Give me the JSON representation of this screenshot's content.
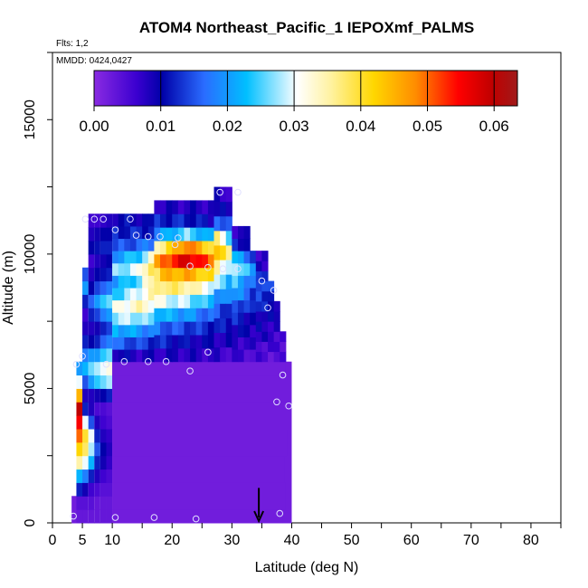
{
  "chart_data": {
    "type": "heatmap",
    "title": "ATOM4 Northeast_Pacific_1 IEPOXmf_PALMS",
    "annotations": {
      "flights": "Flts: 1,2",
      "dates": "MMDD: 0424,0427"
    },
    "xlabel": "Latitude (deg N)",
    "ylabel": "Altitude (m)",
    "xlim": [
      0,
      85
    ],
    "ylim": [
      0,
      17500
    ],
    "x_ticks": [
      0,
      5,
      10,
      20,
      30,
      40,
      50,
      60,
      70,
      80
    ],
    "y_ticks": [
      0,
      5000,
      10000,
      15000
    ],
    "grid": false,
    "colorbar": {
      "placement": "top-inside",
      "min": 0,
      "max": 0.0635,
      "ticks": [
        "0.00",
        "0.01",
        "0.02",
        "0.03",
        "0.04",
        "0.05",
        "0.06"
      ],
      "tick_values": [
        0,
        0.01,
        0.02,
        0.03,
        0.04,
        0.05,
        0.06
      ],
      "colors": [
        "#8a2be2",
        "#0000a8",
        "#2a6cff",
        "#00bfff",
        "#ffffff",
        "#ffd700",
        "#ff8c00",
        "#ff0000",
        "#a01010"
      ]
    },
    "marker": {
      "type": "arrow-down",
      "x": 34.5
    },
    "columns": [
      {
        "x0": 3.2,
        "x1": 4.5,
        "ytop": 1000,
        "v": [
          0.002
        ]
      },
      {
        "x0": 4.0,
        "x1": 5.2,
        "ytop": 6000,
        "v": [
          0.003,
          0.004,
          0.012,
          0.022,
          0.035,
          0.042,
          0.05,
          0.055,
          0.06,
          0.045,
          0.03,
          0.02
        ]
      },
      {
        "x0": 5.0,
        "x1": 6.0,
        "ytop": 9500,
        "v": [
          0.003,
          0.004,
          0.009,
          0.018,
          0.03,
          0.038,
          0.04,
          0.03,
          0.012,
          0.008,
          0.015,
          0.022,
          0.018,
          0.012,
          0.008,
          0.006,
          0.012,
          0.02,
          0.015
        ]
      },
      {
        "x0": 6.0,
        "x1": 7.0,
        "ytop": 11500,
        "v": [
          0.003,
          0.004,
          0.006,
          0.012,
          0.022,
          0.028,
          0.03,
          0.015,
          0.008,
          0.008,
          0.02,
          0.026,
          0.02,
          0.01,
          0.008,
          0.012,
          0.016,
          0.01,
          0.008,
          0.006,
          0.01,
          0.008,
          0.006
        ]
      },
      {
        "x0": 7.0,
        "x1": 8.0,
        "ytop": 11500,
        "v": [
          0.003,
          0.003,
          0.005,
          0.008,
          0.012,
          0.015,
          0.012,
          0.008,
          0.005,
          0.009,
          0.024,
          0.028,
          0.02,
          0.012,
          0.009,
          0.014,
          0.02,
          0.014,
          0.01,
          0.008,
          0.011,
          0.009,
          0.006
        ]
      },
      {
        "x0": 8.0,
        "x1": 9.0,
        "ytop": 11500,
        "v": [
          0.003,
          0.003,
          0.004,
          0.006,
          0.009,
          0.01,
          0.008,
          0.006,
          0.005,
          0.01,
          0.026,
          0.03,
          0.024,
          0.016,
          0.012,
          0.018,
          0.024,
          0.016,
          0.011,
          0.009,
          0.012,
          0.01,
          0.007
        ]
      },
      {
        "x0": 9.0,
        "x1": 10.0,
        "ytop": 11500,
        "v": [
          0.003,
          0.003,
          0.004,
          0.005,
          0.007,
          0.008,
          0.007,
          0.005,
          0.004,
          0.012,
          0.028,
          0.032,
          0.026,
          0.018,
          0.014,
          0.02,
          0.026,
          0.018,
          0.012,
          0.01,
          0.012,
          0.01,
          0.008
        ]
      },
      {
        "x0": 10.0,
        "x1": 40.0,
        "ytop": 6000,
        "v": [
          0.002
        ]
      }
    ],
    "upper_region": {
      "x_range": [
        9.0,
        39.0
      ],
      "y_range": [
        6000,
        12500
      ],
      "cells": [
        {
          "x": 10,
          "vals": [
            0.01,
            0.016,
            0.022,
            0.028,
            0.03,
            0.024,
            0.02,
            0.026,
            0.02,
            0.014,
            0.012,
            0.01
          ]
        },
        {
          "x": 14,
          "vals": [
            0.008,
            0.014,
            0.02,
            0.028,
            0.034,
            0.03,
            0.026,
            0.03,
            0.024,
            0.016,
            0.012,
            0.01
          ]
        },
        {
          "x": 18,
          "vals": [
            0.008,
            0.012,
            0.016,
            0.022,
            0.03,
            0.038,
            0.044,
            0.05,
            0.038,
            0.02,
            0.012,
            0.008
          ]
        },
        {
          "x": 22,
          "vals": [
            0.008,
            0.01,
            0.014,
            0.02,
            0.028,
            0.036,
            0.046,
            0.058,
            0.05,
            0.026,
            0.012,
            0.008
          ]
        },
        {
          "x": 26,
          "vals": [
            0.007,
            0.009,
            0.012,
            0.016,
            0.022,
            0.03,
            0.04,
            0.05,
            0.04,
            0.02,
            0.01,
            0.008
          ]
        },
        {
          "x": 30,
          "vals": [
            0.006,
            0.008,
            0.01,
            0.012,
            0.016,
            0.02,
            0.024,
            0.03,
            0.022,
            0.012,
            0.008,
            0.007
          ]
        },
        {
          "x": 34,
          "vals": [
            0.005,
            0.006,
            0.008,
            0.009,
            0.01,
            0.012,
            0.014,
            0.016,
            0.012,
            0.009,
            0.007,
            0.006
          ]
        },
        {
          "x": 38,
          "vals": [
            0.004,
            0.005,
            0.006,
            0.007,
            0.008,
            0.009,
            0.01,
            0.01,
            0.009,
            0.007,
            0.006,
            0.005
          ]
        }
      ]
    },
    "points": [
      {
        "x": 3.5,
        "y": 250
      },
      {
        "x": 10.5,
        "y": 200
      },
      {
        "x": 17,
        "y": 200
      },
      {
        "x": 24,
        "y": 150
      },
      {
        "x": 38,
        "y": 350
      },
      {
        "x": 4.0,
        "y": 5900
      },
      {
        "x": 5.0,
        "y": 6200
      },
      {
        "x": 9.0,
        "y": 5900
      },
      {
        "x": 12,
        "y": 6000
      },
      {
        "x": 16,
        "y": 6000
      },
      {
        "x": 19,
        "y": 6000
      },
      {
        "x": 23,
        "y": 5650
      },
      {
        "x": 26,
        "y": 6350
      },
      {
        "x": 38.5,
        "y": 5500
      },
      {
        "x": 37.5,
        "y": 4500
      },
      {
        "x": 39.5,
        "y": 4350
      },
      {
        "x": 36,
        "y": 8000
      },
      {
        "x": 37,
        "y": 8650
      },
      {
        "x": 35,
        "y": 9000
      },
      {
        "x": 5.5,
        "y": 11300
      },
      {
        "x": 7,
        "y": 11300
      },
      {
        "x": 8.5,
        "y": 11300
      },
      {
        "x": 10.5,
        "y": 10900
      },
      {
        "x": 13,
        "y": 11300
      },
      {
        "x": 14,
        "y": 10700
      },
      {
        "x": 16,
        "y": 10650
      },
      {
        "x": 18,
        "y": 10650
      },
      {
        "x": 21,
        "y": 10600
      },
      {
        "x": 20.5,
        "y": 10350
      },
      {
        "x": 23,
        "y": 9550
      },
      {
        "x": 26,
        "y": 9500
      },
      {
        "x": 28.5,
        "y": 9450
      },
      {
        "x": 31,
        "y": 9450
      },
      {
        "x": 28,
        "y": 12300
      },
      {
        "x": 31,
        "y": 12300
      }
    ]
  }
}
